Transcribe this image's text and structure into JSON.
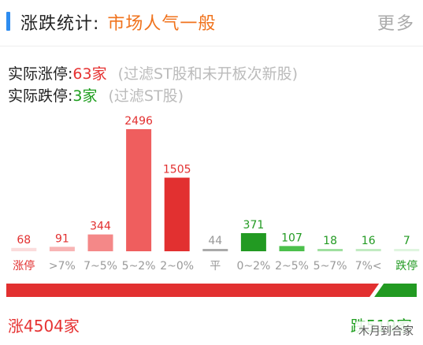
{
  "header": {
    "title": "涨跌统计:",
    "mood": "市场人气一般",
    "more_label": "更多"
  },
  "stats": {
    "limit_up_label": "实际涨停:",
    "limit_up_value": "63家",
    "limit_up_note": "(过滤ST股和未开板次新股)",
    "limit_down_label": "实际跌停:",
    "limit_down_value": "3家",
    "limit_down_note": "(过滤ST股)"
  },
  "colors": {
    "up": "#e63232",
    "down": "#1e9e1e",
    "flat": "#aaaaaa"
  },
  "chart_data": {
    "type": "bar",
    "categories": [
      "涨停",
      ">7%",
      "7~5%",
      "5~2%",
      "2~0%",
      "平",
      "0~2%",
      "2~5%",
      "5~7%",
      "7%<",
      "跌停"
    ],
    "values": [
      68,
      91,
      344,
      2496,
      1505,
      44,
      371,
      107,
      18,
      16,
      7
    ],
    "bar_colors": [
      "#fbdcdc",
      "#f8b4b4",
      "#f48888",
      "#ef5e5e",
      "#e23030",
      "#aaaaaa",
      "#229a22",
      "#4cc04c",
      "#9fdf9f",
      "#c2ebc2",
      "#dff5df"
    ],
    "label_colors": [
      "#e23030",
      "#e23030",
      "#e23030",
      "#e23030",
      "#e23030",
      "#999999",
      "#229a22",
      "#229a22",
      "#229a22",
      "#229a22",
      "#229a22"
    ],
    "tick_colors": [
      "#e23030",
      "#999999",
      "#999999",
      "#999999",
      "#999999",
      "#999999",
      "#999999",
      "#999999",
      "#999999",
      "#999999",
      "#229a22"
    ],
    "ylim": [
      0,
      2496
    ],
    "title": "",
    "xlabel": "",
    "ylabel": "",
    "grid": false,
    "ratio_bar": {
      "up_count": 4504,
      "down_count": 519,
      "up_label": "涨4504家",
      "down_label": "跌519家"
    }
  },
  "watermark": "木月到合家"
}
